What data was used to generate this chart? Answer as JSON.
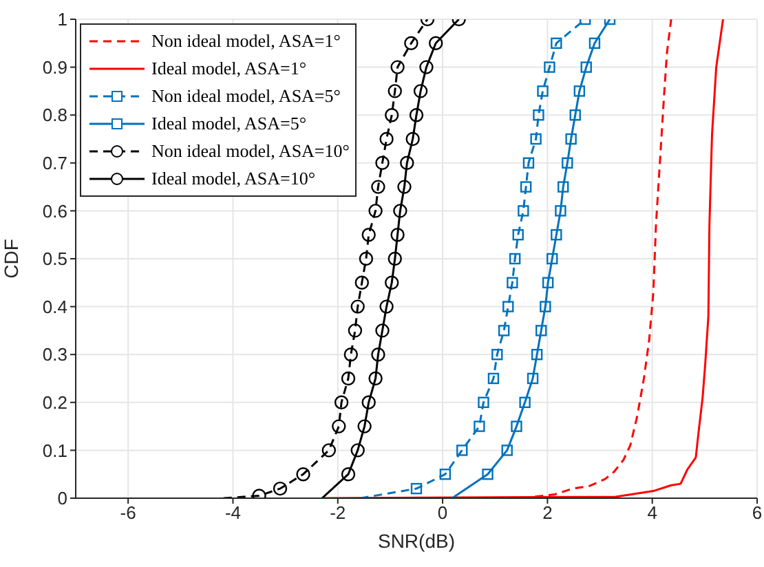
{
  "chart_data": {
    "type": "line",
    "xlabel": "SNR(dB)",
    "ylabel": "CDF",
    "xlim": [
      -7,
      6
    ],
    "xticks": [
      -6,
      -4,
      -2,
      0,
      2,
      4,
      6
    ],
    "ylim": [
      0,
      1
    ],
    "yticks": [
      0,
      0.1,
      0.2,
      0.3,
      0.4,
      0.5,
      0.6,
      0.7,
      0.8,
      0.9,
      1
    ],
    "grid": true,
    "legend": "top left",
    "series": [
      {
        "name": "Non ideal model, ASA=1°",
        "color": "#ff0000",
        "line_style": "dashed",
        "marker": "none",
        "x": [
          1.5,
          2.14,
          2.48,
          2.79,
          3.1,
          3.27,
          3.45,
          3.58,
          3.71,
          3.84,
          3.94,
          4.02,
          4.07,
          4.15,
          4.23,
          4.28,
          4.36
        ],
        "values": [
          0,
          0.008,
          0.02,
          0.025,
          0.04,
          0.055,
          0.08,
          0.11,
          0.17,
          0.25,
          0.33,
          0.43,
          0.57,
          0.71,
          0.85,
          0.93,
          1
        ]
      },
      {
        "name": "Ideal model, ASA=1°",
        "color": "#ff0000",
        "line_style": "solid",
        "marker": "none",
        "x": [
          -2.3,
          3.3,
          4.02,
          4.36,
          4.54,
          4.67,
          4.83,
          4.88,
          4.96,
          5.01,
          5.07,
          5.09,
          5.14,
          5.22,
          5.35
        ],
        "values": [
          0,
          0.003,
          0.015,
          0.027,
          0.03,
          0.06,
          0.085,
          0.135,
          0.21,
          0.28,
          0.38,
          0.57,
          0.76,
          0.9,
          1
        ]
      },
      {
        "name": "Non ideal model, ASA=5°",
        "color": "#0072bd",
        "line_style": "dashed",
        "marker": "square",
        "x": [
          -1.57,
          -0.5,
          0.05,
          0.37,
          0.7,
          0.78,
          0.97,
          1.04,
          1.17,
          1.25,
          1.33,
          1.38,
          1.44,
          1.54,
          1.59,
          1.64,
          1.78,
          1.83,
          1.91,
          2.04,
          2.17,
          2.72
        ],
        "values": [
          0,
          0.02,
          0.05,
          0.1,
          0.15,
          0.2,
          0.25,
          0.3,
          0.35,
          0.4,
          0.45,
          0.5,
          0.55,
          0.6,
          0.65,
          0.7,
          0.75,
          0.8,
          0.85,
          0.9,
          0.95,
          1
        ]
      },
      {
        "name": "Ideal model, ASA=5°",
        "color": "#0072bd",
        "line_style": "solid",
        "marker": "square",
        "x": [
          0.18,
          0.86,
          1.23,
          1.41,
          1.57,
          1.72,
          1.8,
          1.88,
          1.96,
          2.01,
          2.09,
          2.17,
          2.25,
          2.3,
          2.38,
          2.45,
          2.53,
          2.61,
          2.74,
          2.9,
          3.19
        ],
        "values": [
          0,
          0.05,
          0.1,
          0.15,
          0.2,
          0.25,
          0.3,
          0.35,
          0.4,
          0.45,
          0.5,
          0.55,
          0.6,
          0.65,
          0.7,
          0.75,
          0.8,
          0.85,
          0.9,
          0.95,
          1
        ]
      },
      {
        "name": "Non ideal model, ASA=10°",
        "color": "#000000",
        "line_style": "dashed",
        "marker": "circle",
        "x": [
          -4.18,
          -3.5,
          -3.1,
          -2.66,
          -2.17,
          -1.98,
          -1.93,
          -1.8,
          -1.75,
          -1.67,
          -1.62,
          -1.54,
          -1.46,
          -1.41,
          -1.28,
          -1.23,
          -1.15,
          -1.07,
          -0.97,
          -0.91,
          -0.86,
          -0.6,
          -0.29
        ],
        "values": [
          0,
          0.005,
          0.02,
          0.05,
          0.1,
          0.15,
          0.2,
          0.25,
          0.3,
          0.35,
          0.4,
          0.45,
          0.5,
          0.55,
          0.6,
          0.65,
          0.7,
          0.75,
          0.8,
          0.85,
          0.9,
          0.95,
          1
        ]
      },
      {
        "name": "Ideal model, ASA=10°",
        "color": "#000000",
        "line_style": "solid",
        "marker": "circle",
        "x": [
          -2.3,
          -1.8,
          -1.62,
          -1.49,
          -1.41,
          -1.28,
          -1.23,
          -1.15,
          -1.07,
          -0.97,
          -0.91,
          -0.86,
          -0.81,
          -0.73,
          -0.68,
          -0.57,
          -0.5,
          -0.42,
          -0.31,
          -0.13,
          0.31
        ],
        "values": [
          0,
          0.05,
          0.1,
          0.15,
          0.2,
          0.25,
          0.3,
          0.35,
          0.4,
          0.45,
          0.5,
          0.55,
          0.6,
          0.65,
          0.7,
          0.75,
          0.8,
          0.85,
          0.9,
          0.95,
          1
        ]
      }
    ]
  }
}
